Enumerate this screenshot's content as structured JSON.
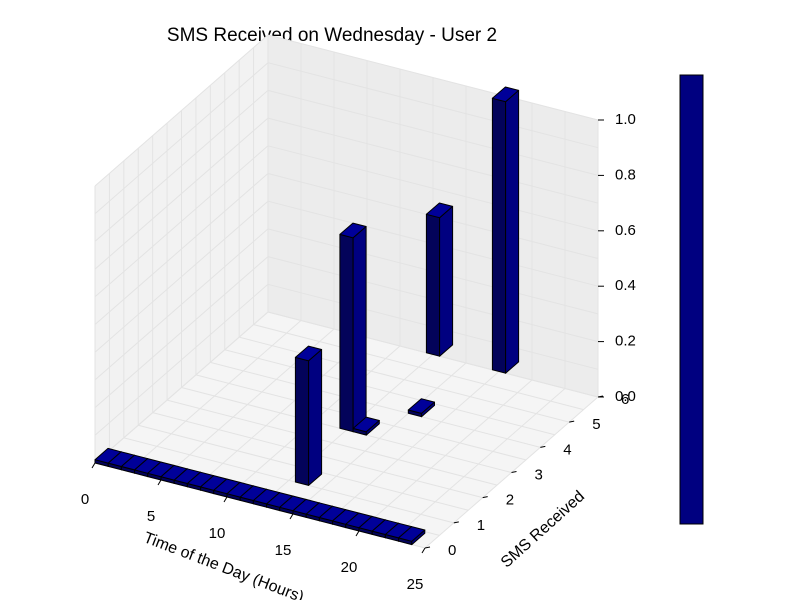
{
  "chart_data": {
    "type": "bar",
    "projection": "3d",
    "title": "SMS Received on Wednesday - User 2",
    "xlabel": "Time of the Day (Hours)",
    "ylabel": "SMS Received",
    "zlabel": "",
    "x_ticks": [
      0,
      5,
      10,
      15,
      20,
      25
    ],
    "y_ticks": [
      0,
      1,
      2,
      3,
      4,
      5,
      6
    ],
    "z_ticks": [
      0.0,
      0.2,
      0.4,
      0.6,
      0.8,
      1.0
    ],
    "x_tick_labels": [
      "0",
      "5",
      "10",
      "15",
      "20",
      "25"
    ],
    "y_tick_labels": [
      "0",
      "1",
      "2",
      "3",
      "4",
      "5",
      "6"
    ],
    "z_tick_labels": [
      "0.0",
      "0.2",
      "0.4",
      "0.6",
      "0.8",
      "1.0"
    ],
    "xlim": [
      0,
      25
    ],
    "ylim": [
      0,
      6
    ],
    "zlim": [
      0,
      1
    ],
    "grid": true,
    "colorbar": true,
    "bar_color": "#000080",
    "bars": [
      {
        "x": 0,
        "y": 0,
        "z": 0
      },
      {
        "x": 1,
        "y": 0,
        "z": 0
      },
      {
        "x": 2,
        "y": 0,
        "z": 0
      },
      {
        "x": 3,
        "y": 0,
        "z": 0
      },
      {
        "x": 4,
        "y": 0,
        "z": 0
      },
      {
        "x": 5,
        "y": 0,
        "z": 0
      },
      {
        "x": 6,
        "y": 0,
        "z": 0
      },
      {
        "x": 7,
        "y": 0,
        "z": 0
      },
      {
        "x": 8,
        "y": 0,
        "z": 0
      },
      {
        "x": 9,
        "y": 0,
        "z": 0
      },
      {
        "x": 10,
        "y": 0,
        "z": 0
      },
      {
        "x": 11,
        "y": 0,
        "z": 0
      },
      {
        "x": 12,
        "y": 0,
        "z": 0
      },
      {
        "x": 13,
        "y": 0,
        "z": 0
      },
      {
        "x": 14,
        "y": 0,
        "z": 0
      },
      {
        "x": 15,
        "y": 0,
        "z": 0
      },
      {
        "x": 16,
        "y": 0,
        "z": 0
      },
      {
        "x": 17,
        "y": 0,
        "z": 0
      },
      {
        "x": 18,
        "y": 0,
        "z": 0
      },
      {
        "x": 19,
        "y": 0,
        "z": 0
      },
      {
        "x": 20,
        "y": 0,
        "z": 0
      },
      {
        "x": 21,
        "y": 0,
        "z": 0
      },
      {
        "x": 22,
        "y": 0,
        "z": 0
      },
      {
        "x": 23,
        "y": 0,
        "z": 0
      },
      {
        "x": 13,
        "y": 1,
        "z": 0.45
      },
      {
        "x": 13,
        "y": 3,
        "z": 0.0
      },
      {
        "x": 15,
        "y": 4,
        "z": 0.0
      },
      {
        "x": 12,
        "y": 3,
        "z": 0.7
      },
      {
        "x": 12,
        "y": 6,
        "z": 0.5
      },
      {
        "x": 17,
        "y": 6,
        "z": 0.98
      }
    ]
  }
}
